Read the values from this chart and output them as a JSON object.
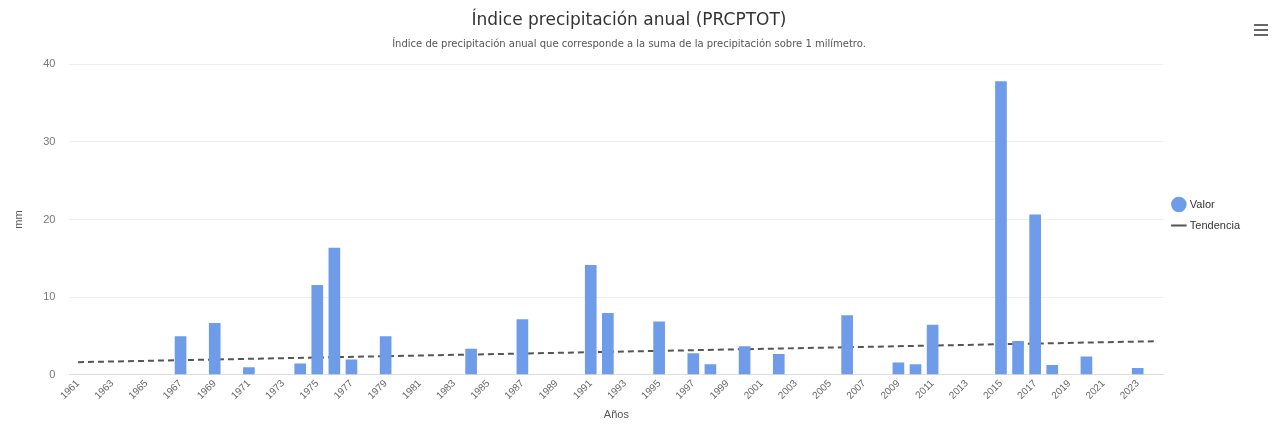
{
  "chart_data": {
    "type": "bar",
    "title": "Índice precipitación anual (PRCPTOT)",
    "subtitle": "Índice de precipitación anual que corresponde a la suma de la precipitación sobre 1 milímetro.",
    "xlabel": "Años",
    "ylabel": "mm",
    "xlim": [
      1960.5,
      2024.5
    ],
    "xticks": [
      1961,
      1963,
      1965,
      1967,
      1969,
      1971,
      1973,
      1975,
      1977,
      1979,
      1981,
      1983,
      1985,
      1987,
      1989,
      1991,
      1993,
      1995,
      1997,
      1999,
      2001,
      2003,
      2005,
      2007,
      2009,
      2011,
      2013,
      2015,
      2017,
      2019,
      2021,
      2023
    ],
    "ylim": [
      0,
      40
    ],
    "yticks": [
      0,
      10,
      20,
      30,
      40
    ],
    "grid": "y",
    "legend": "right",
    "series": [
      {
        "name": "Valor",
        "color": "#6f9ce8",
        "marker": "circle",
        "x": [
          1967,
          1969,
          1971,
          1974,
          1975,
          1976,
          1977,
          1979,
          1984,
          1987,
          1991,
          1992,
          1995,
          1997,
          1998,
          2000,
          2002,
          2006,
          2009,
          2010,
          2011,
          2015,
          2016,
          2017,
          2018,
          2020,
          2023
        ],
        "values": [
          4.9,
          6.6,
          0.9,
          1.4,
          11.5,
          16.3,
          1.9,
          4.9,
          3.3,
          7.1,
          14.1,
          7.9,
          6.8,
          2.7,
          1.3,
          3.6,
          2.6,
          7.6,
          1.5,
          1.3,
          6.4,
          37.8,
          4.3,
          20.6,
          1.2,
          2.3,
          0.8
        ]
      },
      {
        "name": "Tendencia",
        "type": "line",
        "color": "#555555",
        "line_style": "dashed",
        "marker": "none",
        "x": [
          1961,
          2024
        ],
        "values": [
          1.6,
          4.3
        ]
      }
    ]
  }
}
